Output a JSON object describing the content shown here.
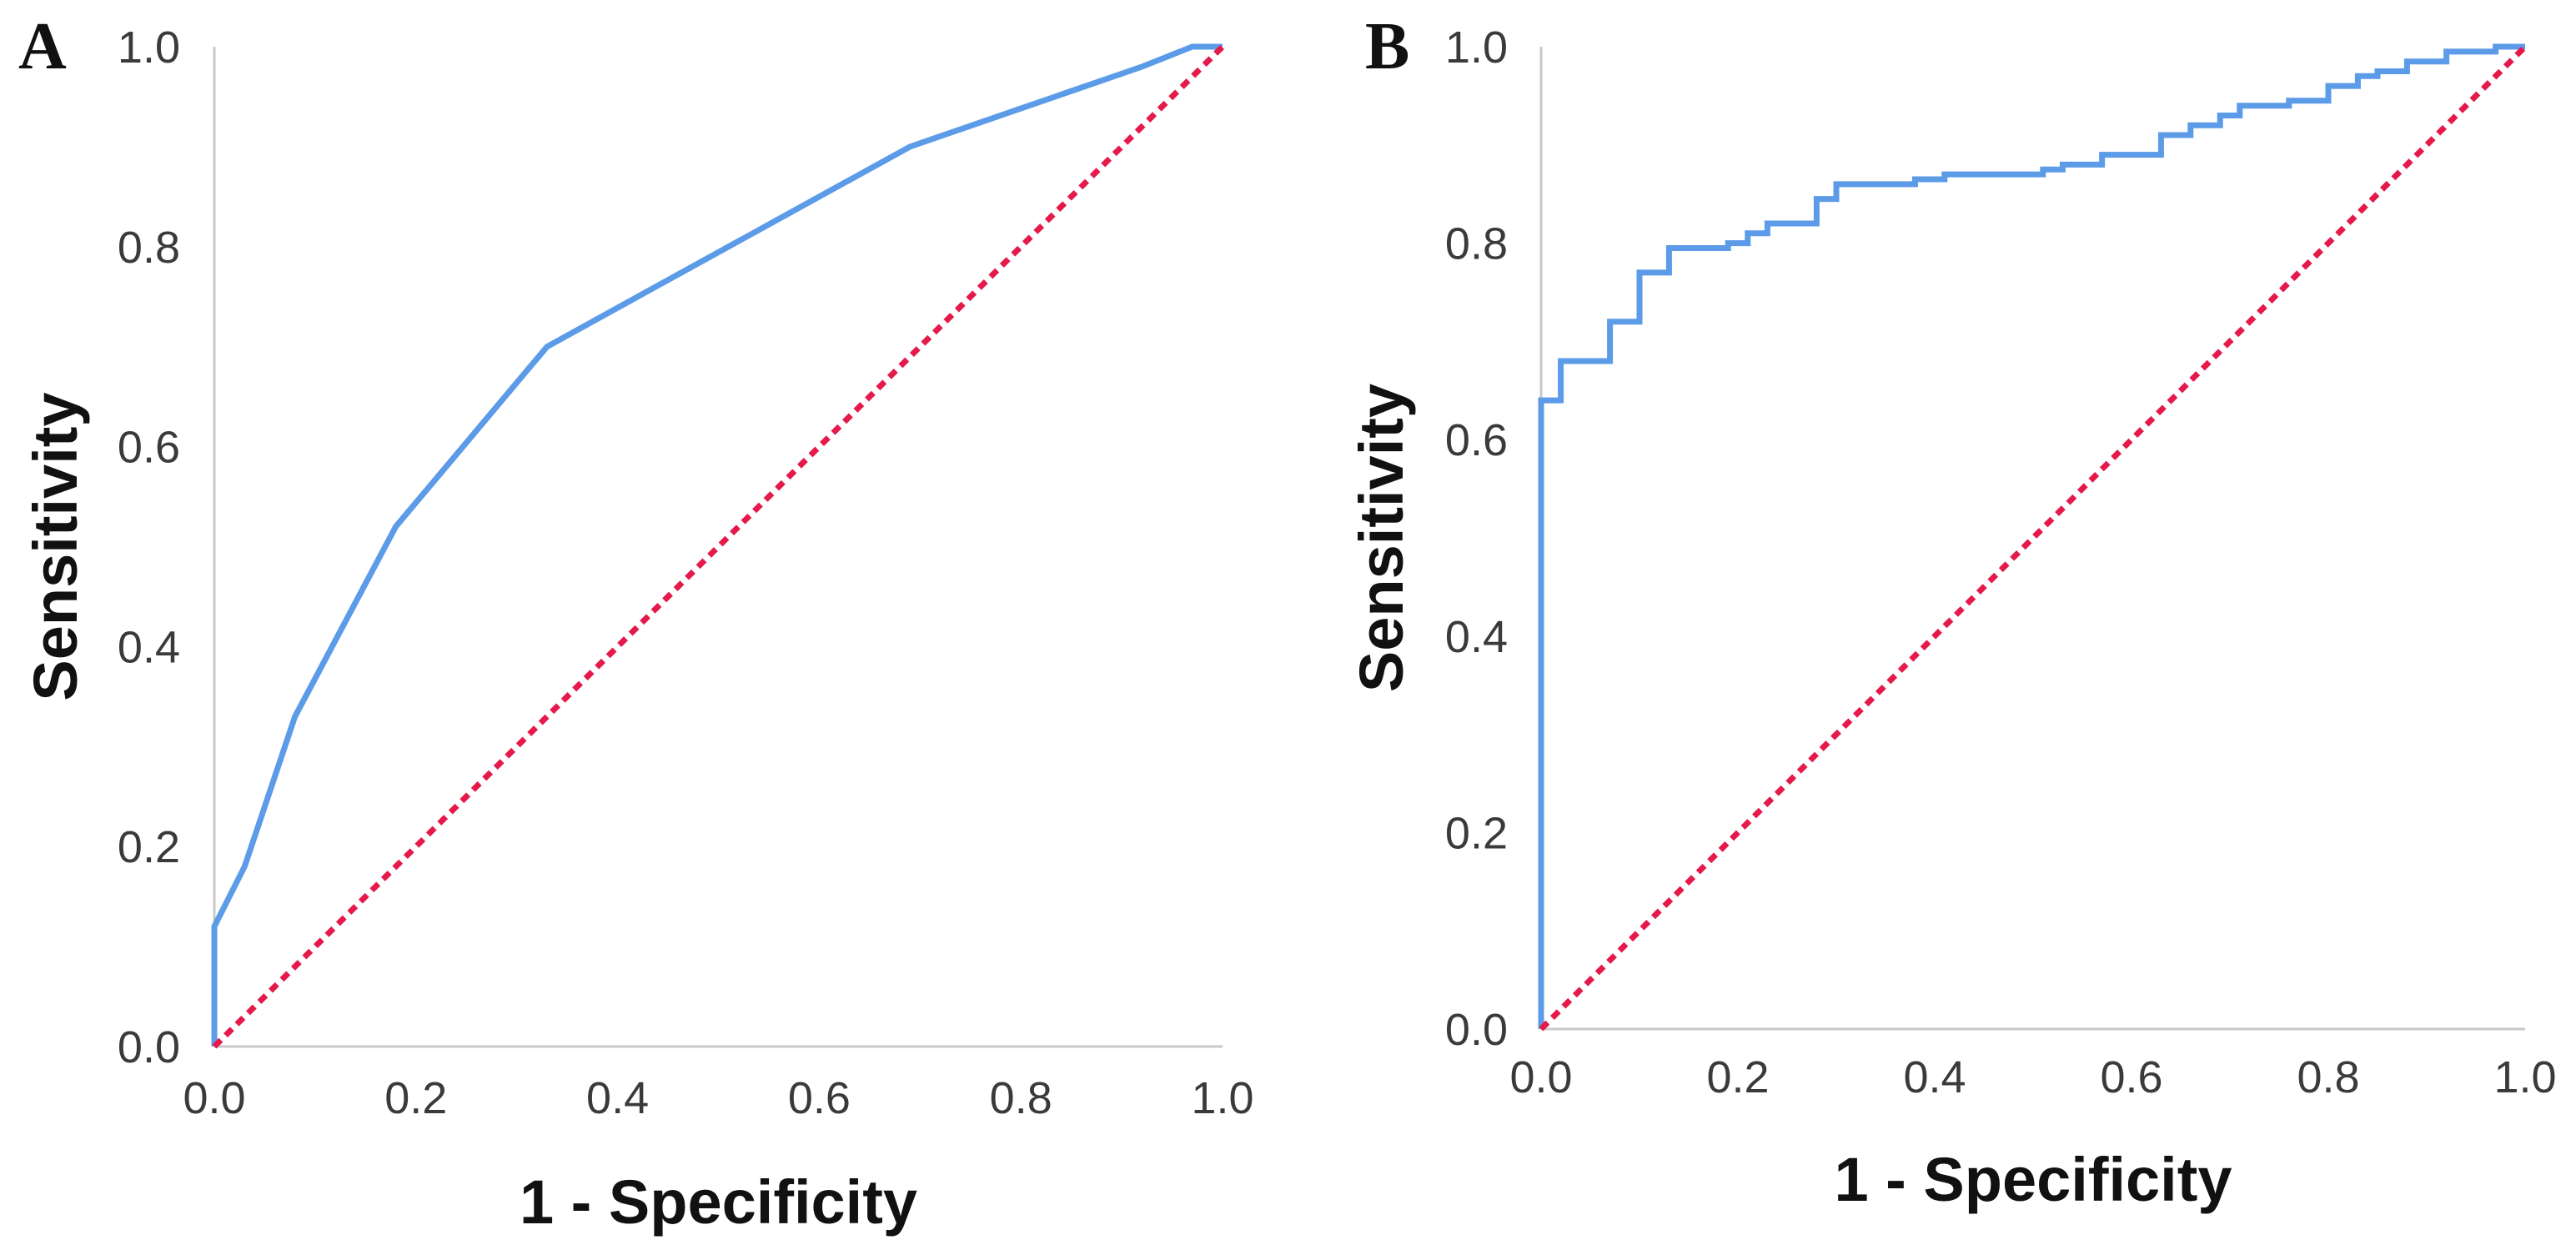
{
  "figure": {
    "colors": {
      "roc_curve": "#5b9be8",
      "reference_line": "#e5194a",
      "axis": "#c8c8c8",
      "tick_text": "#3a3a3a"
    }
  },
  "chart_data": [
    {
      "type": "line",
      "panel_label": "A",
      "xlabel": "1 - Specificity",
      "ylabel": "Sensitivity",
      "xlim": [
        0.0,
        1.0
      ],
      "ylim": [
        0.0,
        1.0
      ],
      "xticks": [
        "0.0",
        "0.2",
        "0.4",
        "0.6",
        "0.8",
        "1.0"
      ],
      "yticks": [
        "0.0",
        "0.2",
        "0.4",
        "0.6",
        "0.8",
        "1.0"
      ],
      "grid": false,
      "series": [
        {
          "name": "ROC curve",
          "style": "solid",
          "x": [
            0.0,
            0.0,
            0.03,
            0.08,
            0.18,
            0.33,
            0.69,
            0.92,
            0.97,
            1.0
          ],
          "y": [
            0.0,
            0.12,
            0.18,
            0.33,
            0.52,
            0.7,
            0.9,
            0.98,
            1.0,
            1.0
          ]
        },
        {
          "name": "Reference line",
          "style": "dashed",
          "x": [
            0.0,
            1.0
          ],
          "y": [
            0.0,
            1.0
          ]
        }
      ]
    },
    {
      "type": "line",
      "panel_label": "B",
      "xlabel": "1 - Specificity",
      "ylabel": "Sensitivity",
      "xlim": [
        0.0,
        1.0
      ],
      "ylim": [
        0.0,
        1.0
      ],
      "xticks": [
        "0.0",
        "0.2",
        "0.4",
        "0.6",
        "0.8",
        "1.0"
      ],
      "yticks": [
        "0.0",
        "0.2",
        "0.4",
        "0.6",
        "0.8",
        "1.0"
      ],
      "grid": false,
      "series": [
        {
          "name": "ROC curve",
          "style": "step",
          "x": [
            0.0,
            0.0,
            0.02,
            0.02,
            0.07,
            0.07,
            0.1,
            0.1,
            0.13,
            0.13,
            0.19,
            0.19,
            0.21,
            0.21,
            0.23,
            0.23,
            0.28,
            0.28,
            0.3,
            0.3,
            0.38,
            0.38,
            0.41,
            0.41,
            0.51,
            0.51,
            0.53,
            0.53,
            0.57,
            0.57,
            0.63,
            0.63,
            0.66,
            0.66,
            0.69,
            0.69,
            0.71,
            0.71,
            0.76,
            0.76,
            0.8,
            0.8,
            0.83,
            0.83,
            0.85,
            0.85,
            0.88,
            0.88,
            0.92,
            0.92,
            0.97,
            0.97,
            1.0
          ],
          "y": [
            0.0,
            0.64,
            0.64,
            0.68,
            0.68,
            0.72,
            0.72,
            0.77,
            0.77,
            0.795,
            0.795,
            0.8,
            0.8,
            0.81,
            0.81,
            0.82,
            0.82,
            0.845,
            0.845,
            0.86,
            0.86,
            0.865,
            0.865,
            0.87,
            0.87,
            0.875,
            0.875,
            0.88,
            0.88,
            0.89,
            0.89,
            0.91,
            0.91,
            0.92,
            0.92,
            0.93,
            0.93,
            0.94,
            0.94,
            0.945,
            0.945,
            0.96,
            0.96,
            0.97,
            0.97,
            0.975,
            0.975,
            0.985,
            0.985,
            0.995,
            0.995,
            1.0,
            1.0
          ]
        },
        {
          "name": "Reference line",
          "style": "dashed",
          "x": [
            0.0,
            1.0
          ],
          "y": [
            0.0,
            1.0
          ]
        }
      ]
    }
  ]
}
